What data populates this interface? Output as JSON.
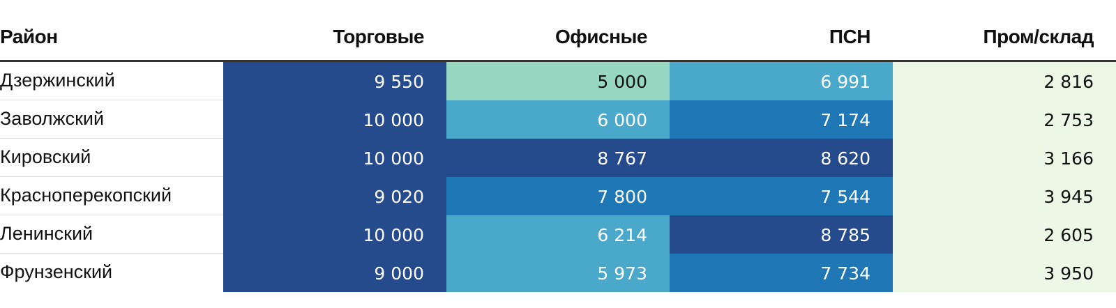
{
  "chart_data": {
    "type": "table",
    "columns": [
      "Район",
      "Торговые",
      "Офисные",
      "ПСН",
      "Пром/склад"
    ],
    "rows": [
      {
        "name": "Дзержинский",
        "values": [
          "9 550",
          "5 000",
          "6 991",
          "2 816"
        ],
        "colors": [
          "#254b8c",
          "#97d6c0",
          "#4aa8cb",
          "#edf7e6"
        ]
      },
      {
        "name": "Заволжский",
        "values": [
          "10 000",
          "6 000",
          "7 174",
          "2 753"
        ],
        "colors": [
          "#254b8c",
          "#4aa8cb",
          "#1f77b6",
          "#edf7e6"
        ]
      },
      {
        "name": "Кировский",
        "values": [
          "10 000",
          "8 767",
          "8 620",
          "3 166"
        ],
        "colors": [
          "#254b8c",
          "#254b8c",
          "#254b8c",
          "#edf7e6"
        ]
      },
      {
        "name": "Красноперекопский",
        "values": [
          "9 020",
          "7 800",
          "7 544",
          "3 945"
        ],
        "colors": [
          "#254b8c",
          "#1f77b6",
          "#1f77b6",
          "#edf7e6"
        ]
      },
      {
        "name": "Ленинский",
        "values": [
          "10 000",
          "6 214",
          "8 785",
          "2 605"
        ],
        "colors": [
          "#254b8c",
          "#4aa8cb",
          "#254b8c",
          "#edf7e6"
        ]
      },
      {
        "name": "Фрунзенский",
        "values": [
          "9 000",
          "5 973",
          "7 734",
          "3 950"
        ],
        "colors": [
          "#254b8c",
          "#4aa8cb",
          "#1f77b6",
          "#edf7e6"
        ]
      }
    ]
  }
}
